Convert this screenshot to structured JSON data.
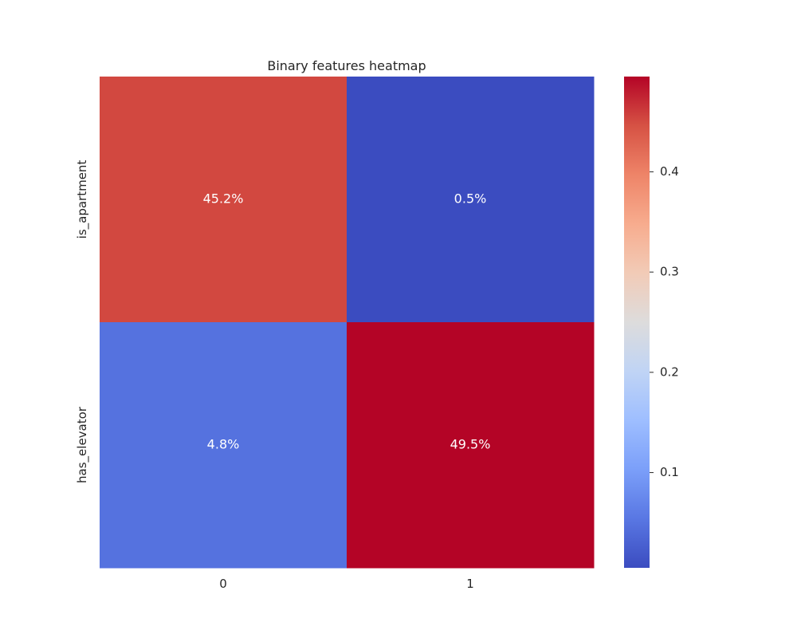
{
  "chart_data": {
    "type": "heatmap",
    "title": "Binary features heatmap",
    "rows": [
      "is_apartment",
      "has_elevator"
    ],
    "columns": [
      "0",
      "1"
    ],
    "values": [
      [
        0.452,
        0.005
      ],
      [
        0.048,
        0.495
      ]
    ],
    "annotations": [
      [
        "45.2%",
        "0.5%"
      ],
      [
        "4.8%",
        "49.5%"
      ]
    ],
    "colormap": "coolwarm",
    "colormap_colors": [
      "#3b4cc0",
      "#5977e3",
      "#7b9ff9",
      "#9ebeff",
      "#c0d4f5",
      "#dddcdc",
      "#f2cbb7",
      "#f7ac8e",
      "#ee8468",
      "#d65244",
      "#b40426"
    ],
    "vmin": 0.005,
    "vmax": 0.495,
    "colorbar": {
      "ticks": [
        0.1,
        0.2,
        0.3,
        0.4
      ],
      "tick_labels": [
        "0.1",
        "0.2",
        "0.3",
        "0.4"
      ]
    },
    "grid": false
  }
}
